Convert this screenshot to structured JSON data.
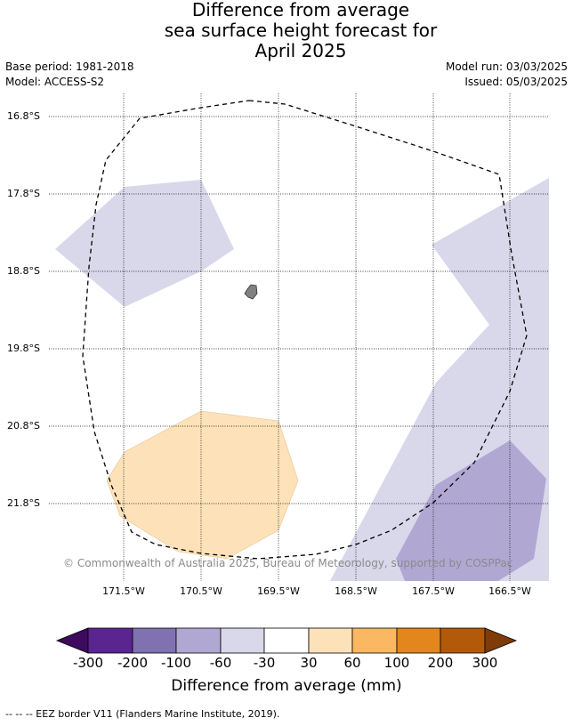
{
  "title": {
    "line1": "Difference from average",
    "line2": "sea surface height forecast for",
    "line3": "April 2025"
  },
  "meta": {
    "base_period": "Base period: 1981-2018",
    "model": "Model: ACCESS-S2",
    "model_run": "Model run: 03/03/2025",
    "issued": "Issued: 05/03/2025"
  },
  "axes": {
    "latitudes": [
      "16.8°S",
      "17.8°S",
      "18.8°S",
      "19.8°S",
      "20.8°S",
      "21.8°S"
    ],
    "longitudes": [
      "171.5°W",
      "170.5°W",
      "169.5°W",
      "168.5°W",
      "167.5°W",
      "166.5°W"
    ]
  },
  "credit": "© Commonwealth of Australia 2025, Bureau of Meteorology, supported by COSPPac",
  "colorbar": {
    "ticks": [
      "-300",
      "-200",
      "-100",
      "-60",
      "-30",
      "30",
      "60",
      "100",
      "200",
      "300"
    ],
    "colors": [
      "#3d0a5e",
      "#5b2590",
      "#8071b0",
      "#b0a8d3",
      "#d8d8ea",
      "#ffffff",
      "#fde2b9",
      "#fbb862",
      "#e3861c",
      "#b25a0a",
      "#7f3b08"
    ],
    "label": "Difference from average (mm)"
  },
  "footnote": "--  --  -- EEZ border V11 (Flanders Marine Institute, 2019)."
}
